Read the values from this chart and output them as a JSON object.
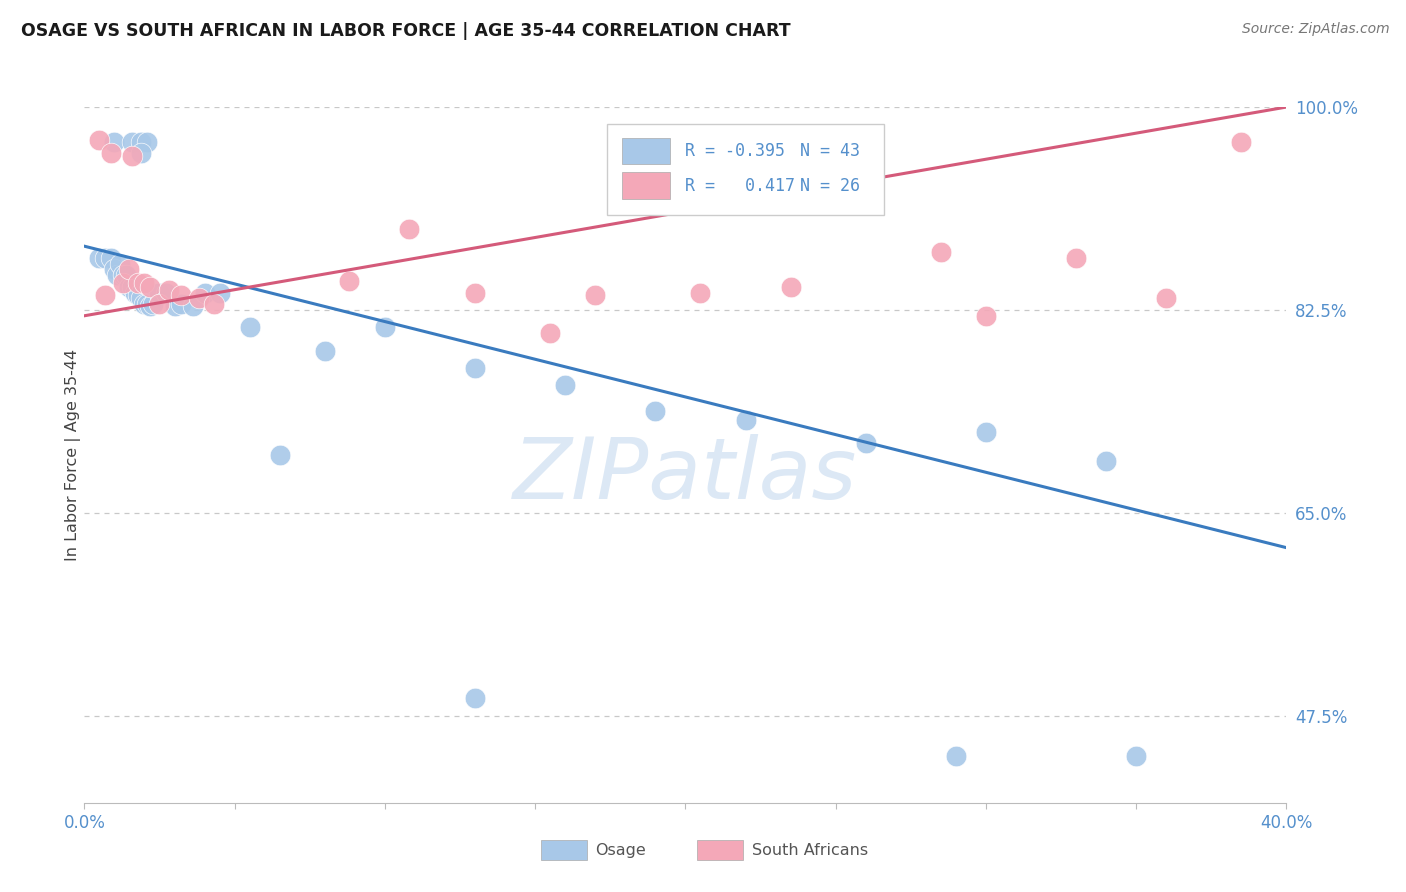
{
  "title": "OSAGE VS SOUTH AFRICAN IN LABOR FORCE | AGE 35-44 CORRELATION CHART",
  "source": "Source: ZipAtlas.com",
  "ylabel": "In Labor Force | Age 35-44",
  "xlim": [
    0.0,
    0.4
  ],
  "ylim": [
    0.4,
    1.0
  ],
  "xtick_positions": [
    0.0,
    0.05,
    0.1,
    0.15,
    0.2,
    0.25,
    0.3,
    0.35,
    0.4
  ],
  "xticklabels": [
    "0.0%",
    "",
    "",
    "",
    "",
    "",
    "",
    "",
    "40.0%"
  ],
  "ytick_positions": [
    1.0,
    0.825,
    0.65,
    0.475
  ],
  "yticklabels": [
    "100.0%",
    "82.5%",
    "65.0%",
    "47.5%"
  ],
  "blue_scatter_color": "#a8c8e8",
  "pink_scatter_color": "#f4a8b8",
  "blue_line_color": "#3a7bbf",
  "pink_line_color": "#d45a7a",
  "axis_tick_color": "#5590cc",
  "legend_r_color": "#5590cc",
  "legend_n_color": "#5590cc",
  "watermark_color": "#dce8f5",
  "watermark_text": "ZIPatlas",
  "legend_r1": "R = -0.395",
  "legend_n1": "N = 43",
  "legend_r2": "R =   0.417",
  "legend_n2": "N = 26",
  "osage_x": [
    0.01,
    0.016,
    0.019,
    0.021,
    0.019,
    0.005,
    0.007,
    0.009,
    0.01,
    0.011,
    0.012,
    0.013,
    0.014,
    0.015,
    0.016,
    0.017,
    0.018,
    0.019,
    0.02,
    0.021,
    0.022,
    0.023,
    0.025,
    0.027,
    0.03,
    0.032,
    0.036,
    0.04,
    0.045,
    0.055,
    0.065,
    0.08,
    0.1,
    0.13,
    0.16,
    0.19,
    0.22,
    0.26,
    0.3,
    0.34,
    0.13,
    0.29,
    0.35
  ],
  "osage_y": [
    0.97,
    0.97,
    0.97,
    0.97,
    0.96,
    0.87,
    0.87,
    0.87,
    0.86,
    0.855,
    0.865,
    0.855,
    0.855,
    0.845,
    0.845,
    0.84,
    0.838,
    0.835,
    0.83,
    0.83,
    0.828,
    0.83,
    0.84,
    0.84,
    0.828,
    0.83,
    0.828,
    0.84,
    0.84,
    0.81,
    0.7,
    0.79,
    0.81,
    0.775,
    0.76,
    0.738,
    0.73,
    0.71,
    0.72,
    0.695,
    0.49,
    0.44,
    0.44
  ],
  "sa_x": [
    0.007,
    0.013,
    0.015,
    0.018,
    0.02,
    0.022,
    0.025,
    0.028,
    0.032,
    0.038,
    0.043,
    0.088,
    0.13,
    0.17,
    0.205,
    0.235,
    0.108,
    0.285,
    0.33,
    0.385,
    0.155,
    0.3,
    0.36,
    0.005,
    0.009,
    0.016
  ],
  "sa_y": [
    0.838,
    0.848,
    0.86,
    0.848,
    0.848,
    0.845,
    0.83,
    0.842,
    0.838,
    0.835,
    0.83,
    0.85,
    0.84,
    0.838,
    0.84,
    0.845,
    0.895,
    0.875,
    0.87,
    0.97,
    0.805,
    0.82,
    0.835,
    0.972,
    0.96,
    0.958
  ],
  "blue_trend_x": [
    0.0,
    0.4
  ],
  "blue_trend_y": [
    0.88,
    0.62
  ],
  "pink_trend_x": [
    0.0,
    0.4
  ],
  "pink_trend_y": [
    0.82,
    1.0
  ]
}
